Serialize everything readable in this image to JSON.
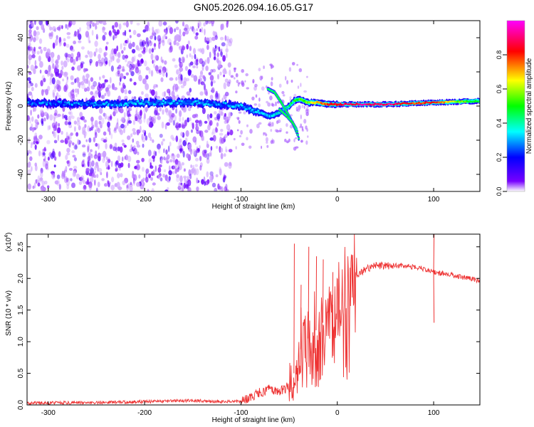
{
  "title": "GN05.2026.094.16.05.G17",
  "chart_data": [
    {
      "type": "heatmap",
      "xlabel": "Height of straight line (km)",
      "ylabel": "Frequency (Hz)",
      "xlim": [
        -322,
        148
      ],
      "ylim": [
        -50,
        50
      ],
      "xticks": [
        -300,
        -200,
        -100,
        0,
        100
      ],
      "yticks": [
        -40,
        -20,
        0,
        20,
        40
      ],
      "colorbar": {
        "label": "Normalized spectral amplitude",
        "range": [
          0,
          1
        ],
        "ticks": [
          "0.0",
          "0.2",
          "0.4",
          "0.6",
          "0.8"
        ],
        "colors": [
          "#ffffff",
          "#7700ff",
          "#0000ff",
          "#00ffff",
          "#00ff00",
          "#ffff00",
          "#ff0000",
          "#ff00ff"
        ]
      },
      "ridge_frequency": {
        "height_km": [
          -320,
          -250,
          -200,
          -150,
          -120,
          -100,
          -90,
          -80,
          -70,
          -60,
          -50,
          -45,
          -40,
          -30,
          -20,
          -10,
          0,
          50,
          100,
          148
        ],
        "freq_hz": [
          2,
          1,
          2,
          2,
          1,
          0,
          -2,
          -4,
          -6,
          -4,
          0,
          3,
          4,
          2,
          2,
          1,
          1,
          1,
          2,
          3
        ]
      },
      "ridge_amplitude": {
        "height_km": [
          -320,
          -200,
          -150,
          -120,
          -100,
          -80,
          -60,
          -40,
          -20,
          0,
          20,
          60,
          80,
          100,
          120,
          148
        ],
        "value": [
          0.25,
          0.3,
          0.3,
          0.28,
          0.3,
          0.3,
          0.35,
          0.5,
          0.7,
          0.85,
          0.9,
          0.9,
          0.75,
          0.85,
          0.6,
          0.45
        ]
      },
      "secondary_tracks": [
        {
          "height_km": [
            -72,
            -65,
            -58,
            -52,
            -48,
            -44,
            -41
          ],
          "freq_hz": [
            10,
            8,
            2,
            -4,
            -8,
            -13,
            -17
          ]
        },
        {
          "height_km": [
            -60,
            -52,
            -46,
            -42,
            -40
          ],
          "freq_hz": [
            -2,
            -6,
            -10,
            -14,
            -19
          ]
        }
      ]
    },
    {
      "type": "line",
      "xlabel": "Height of straight line (km)",
      "ylabel": "SNR (10 * v/v)",
      "y_multiplier": "(x10",
      "y_multiplier_exp": "4",
      "y_multiplier_close": ")",
      "xlim": [
        -322,
        148
      ],
      "ylim": [
        0,
        2.7
      ],
      "xticks": [
        -300,
        -200,
        -100,
        0,
        100
      ],
      "yticks": [
        0.0,
        0.5,
        1.0,
        1.5,
        2.0,
        2.5
      ],
      "color": "#ee3333",
      "series": [
        {
          "name": "SNR",
          "x": [
            -322,
            -250,
            -200,
            -150,
            -120,
            -100,
            -90,
            -80,
            -70,
            -60,
            -50,
            -45,
            -40,
            -35,
            -30,
            -25,
            -20,
            -15,
            -10,
            -5,
            0,
            10,
            20,
            30,
            40,
            50,
            60,
            70,
            80,
            90,
            95,
            100,
            105,
            110,
            120,
            130,
            140,
            148
          ],
          "y": [
            0.03,
            0.04,
            0.05,
            0.07,
            0.05,
            0.06,
            0.1,
            0.2,
            0.25,
            0.2,
            0.3,
            0.5,
            0.8,
            1.0,
            1.05,
            1.15,
            1.2,
            1.3,
            1.35,
            1.45,
            1.6,
            1.85,
            2.05,
            2.15,
            2.2,
            2.2,
            2.2,
            2.2,
            2.18,
            2.15,
            2.12,
            2.1,
            2.08,
            2.08,
            2.05,
            2.02,
            1.99,
            1.96
          ]
        }
      ],
      "spikes": [
        {
          "x": -45,
          "y": 2.55
        },
        {
          "x": -38,
          "y": 1.9
        },
        {
          "x": -30,
          "y": 2.5
        },
        {
          "x": -22,
          "y": 2.35
        },
        {
          "x": -15,
          "y": 2.3
        },
        {
          "x": -5,
          "y": 2.1
        },
        {
          "x": 100,
          "y": 2.7
        },
        {
          "x": 100,
          "y": 1.3
        }
      ]
    }
  ]
}
